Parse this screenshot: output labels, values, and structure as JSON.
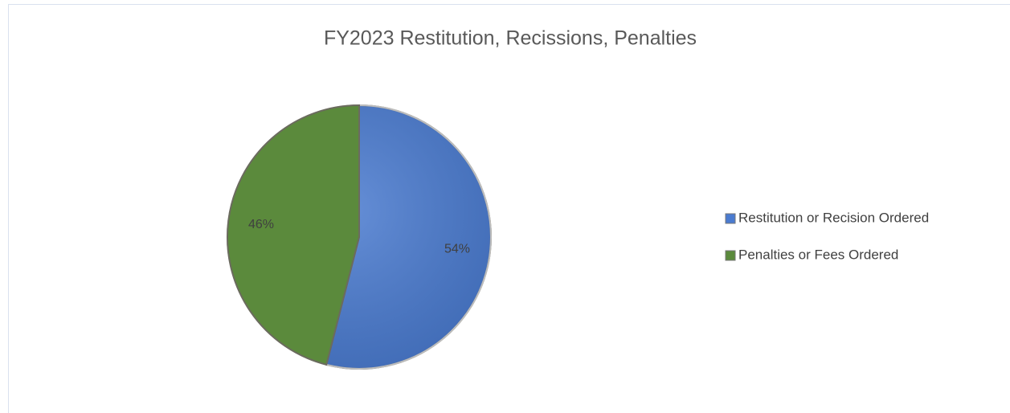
{
  "chart_data": {
    "type": "pie",
    "title": "FY2023 Restitution, Recissions, Penalties",
    "categories": [
      "Restitution or Recision Ordered",
      "Penalties or Fees Ordered"
    ],
    "values": [
      54,
      46
    ],
    "value_labels": [
      "54%",
      "46%"
    ],
    "colors": [
      "#4a7bd0",
      "#5b8a3c"
    ],
    "legend": "right"
  }
}
